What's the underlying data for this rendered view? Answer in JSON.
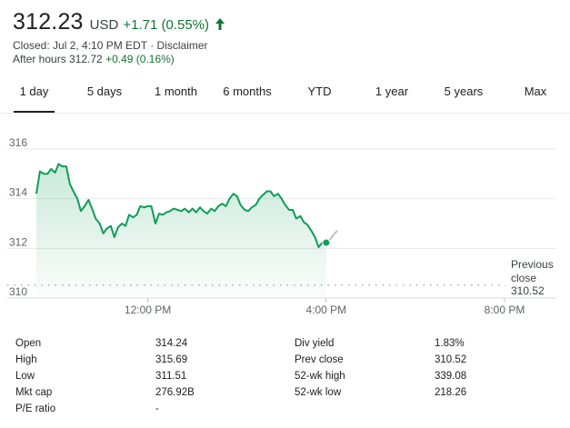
{
  "quote": {
    "price": "312.23",
    "currency": "USD",
    "change": "+1.71 (0.55%)",
    "closed_text": "Closed: Jul 2, 4:10 PM EDT",
    "separator": "·",
    "disclaimer": "Disclaimer",
    "after_hours_label": "After hours 312.72",
    "after_hours_change": "+0.49 (0.16%)",
    "accent_color": "#137333"
  },
  "tabs": [
    {
      "label": "1 day",
      "active": true
    },
    {
      "label": "5 days",
      "active": false
    },
    {
      "label": "1 month",
      "active": false
    },
    {
      "label": "6 months",
      "active": false
    },
    {
      "label": "YTD",
      "active": false
    },
    {
      "label": "1 year",
      "active": false
    },
    {
      "label": "5 years",
      "active": false
    },
    {
      "label": "Max",
      "active": false
    }
  ],
  "chart_data": {
    "type": "line",
    "y_ticks": [
      "316",
      "314",
      "312",
      "310"
    ],
    "x_ticks": [
      "12:00 PM",
      "4:00 PM",
      "8:00 PM"
    ],
    "ylim": [
      310,
      316
    ],
    "grid": true,
    "line_color": "#0f9d58",
    "after_hours_color": "#bdc1c6",
    "previous_close": {
      "label_line1": "Previous",
      "label_line2": "close",
      "value": "310.52",
      "y": 310.52
    },
    "series": [
      {
        "values": [
          [
            9.5,
            314.2
          ],
          [
            9.58,
            315.1
          ],
          [
            9.67,
            315.0
          ],
          [
            9.75,
            315.0
          ],
          [
            9.83,
            315.2
          ],
          [
            9.92,
            315.05
          ],
          [
            10.0,
            315.4
          ],
          [
            10.08,
            315.3
          ],
          [
            10.17,
            315.3
          ],
          [
            10.25,
            314.6
          ],
          [
            10.33,
            314.3
          ],
          [
            10.42,
            314.0
          ],
          [
            10.5,
            313.5
          ],
          [
            10.58,
            313.7
          ],
          [
            10.67,
            313.95
          ],
          [
            10.75,
            313.6
          ],
          [
            10.83,
            313.2
          ],
          [
            10.92,
            313.0
          ],
          [
            11.0,
            312.6
          ],
          [
            11.08,
            312.8
          ],
          [
            11.17,
            312.9
          ],
          [
            11.25,
            312.45
          ],
          [
            11.33,
            312.85
          ],
          [
            11.42,
            313.0
          ],
          [
            11.5,
            312.9
          ],
          [
            11.58,
            313.35
          ],
          [
            11.67,
            313.25
          ],
          [
            11.75,
            313.35
          ],
          [
            11.83,
            313.7
          ],
          [
            11.92,
            313.65
          ],
          [
            12.0,
            313.7
          ],
          [
            12.08,
            313.7
          ],
          [
            12.17,
            313.0
          ],
          [
            12.25,
            313.4
          ],
          [
            12.33,
            313.35
          ],
          [
            12.42,
            313.45
          ],
          [
            12.5,
            313.5
          ],
          [
            12.58,
            313.6
          ],
          [
            12.67,
            313.55
          ],
          [
            12.75,
            313.5
          ],
          [
            12.83,
            313.6
          ],
          [
            12.92,
            313.45
          ],
          [
            13.0,
            313.6
          ],
          [
            13.08,
            313.45
          ],
          [
            13.17,
            313.65
          ],
          [
            13.25,
            313.5
          ],
          [
            13.33,
            313.4
          ],
          [
            13.42,
            313.6
          ],
          [
            13.5,
            313.5
          ],
          [
            13.58,
            313.7
          ],
          [
            13.67,
            313.8
          ],
          [
            13.75,
            313.7
          ],
          [
            13.83,
            314.0
          ],
          [
            13.92,
            314.2
          ],
          [
            14.0,
            314.1
          ],
          [
            14.08,
            313.75
          ],
          [
            14.17,
            313.55
          ],
          [
            14.25,
            313.5
          ],
          [
            14.33,
            313.65
          ],
          [
            14.42,
            313.75
          ],
          [
            14.5,
            314.0
          ],
          [
            14.58,
            314.15
          ],
          [
            14.67,
            314.3
          ],
          [
            14.75,
            314.3
          ],
          [
            14.83,
            314.1
          ],
          [
            14.92,
            314.2
          ],
          [
            15.0,
            314.0
          ],
          [
            15.08,
            313.75
          ],
          [
            15.17,
            313.55
          ],
          [
            15.25,
            313.55
          ],
          [
            15.33,
            313.2
          ],
          [
            15.42,
            313.3
          ],
          [
            15.5,
            313.05
          ],
          [
            15.58,
            312.95
          ],
          [
            15.67,
            312.7
          ],
          [
            15.75,
            312.45
          ],
          [
            15.83,
            312.05
          ],
          [
            15.92,
            312.25
          ],
          [
            16.0,
            312.23
          ]
        ]
      },
      {
        "name": "After hours",
        "values": [
          [
            16.0,
            312.23
          ],
          [
            16.08,
            312.35
          ],
          [
            16.17,
            312.55
          ],
          [
            16.25,
            312.72
          ]
        ]
      }
    ]
  },
  "stats": {
    "left": [
      {
        "label": "Open",
        "value": "314.24"
      },
      {
        "label": "High",
        "value": "315.69"
      },
      {
        "label": "Low",
        "value": "311.51"
      },
      {
        "label": "Mkt cap",
        "value": "276.92B"
      },
      {
        "label": "P/E ratio",
        "value": "-"
      }
    ],
    "right": [
      {
        "label": "Div yield",
        "value": "1.83%"
      },
      {
        "label": "Prev close",
        "value": "310.52"
      },
      {
        "label": "52-wk high",
        "value": "339.08"
      },
      {
        "label": "52-wk low",
        "value": "218.26"
      }
    ]
  }
}
